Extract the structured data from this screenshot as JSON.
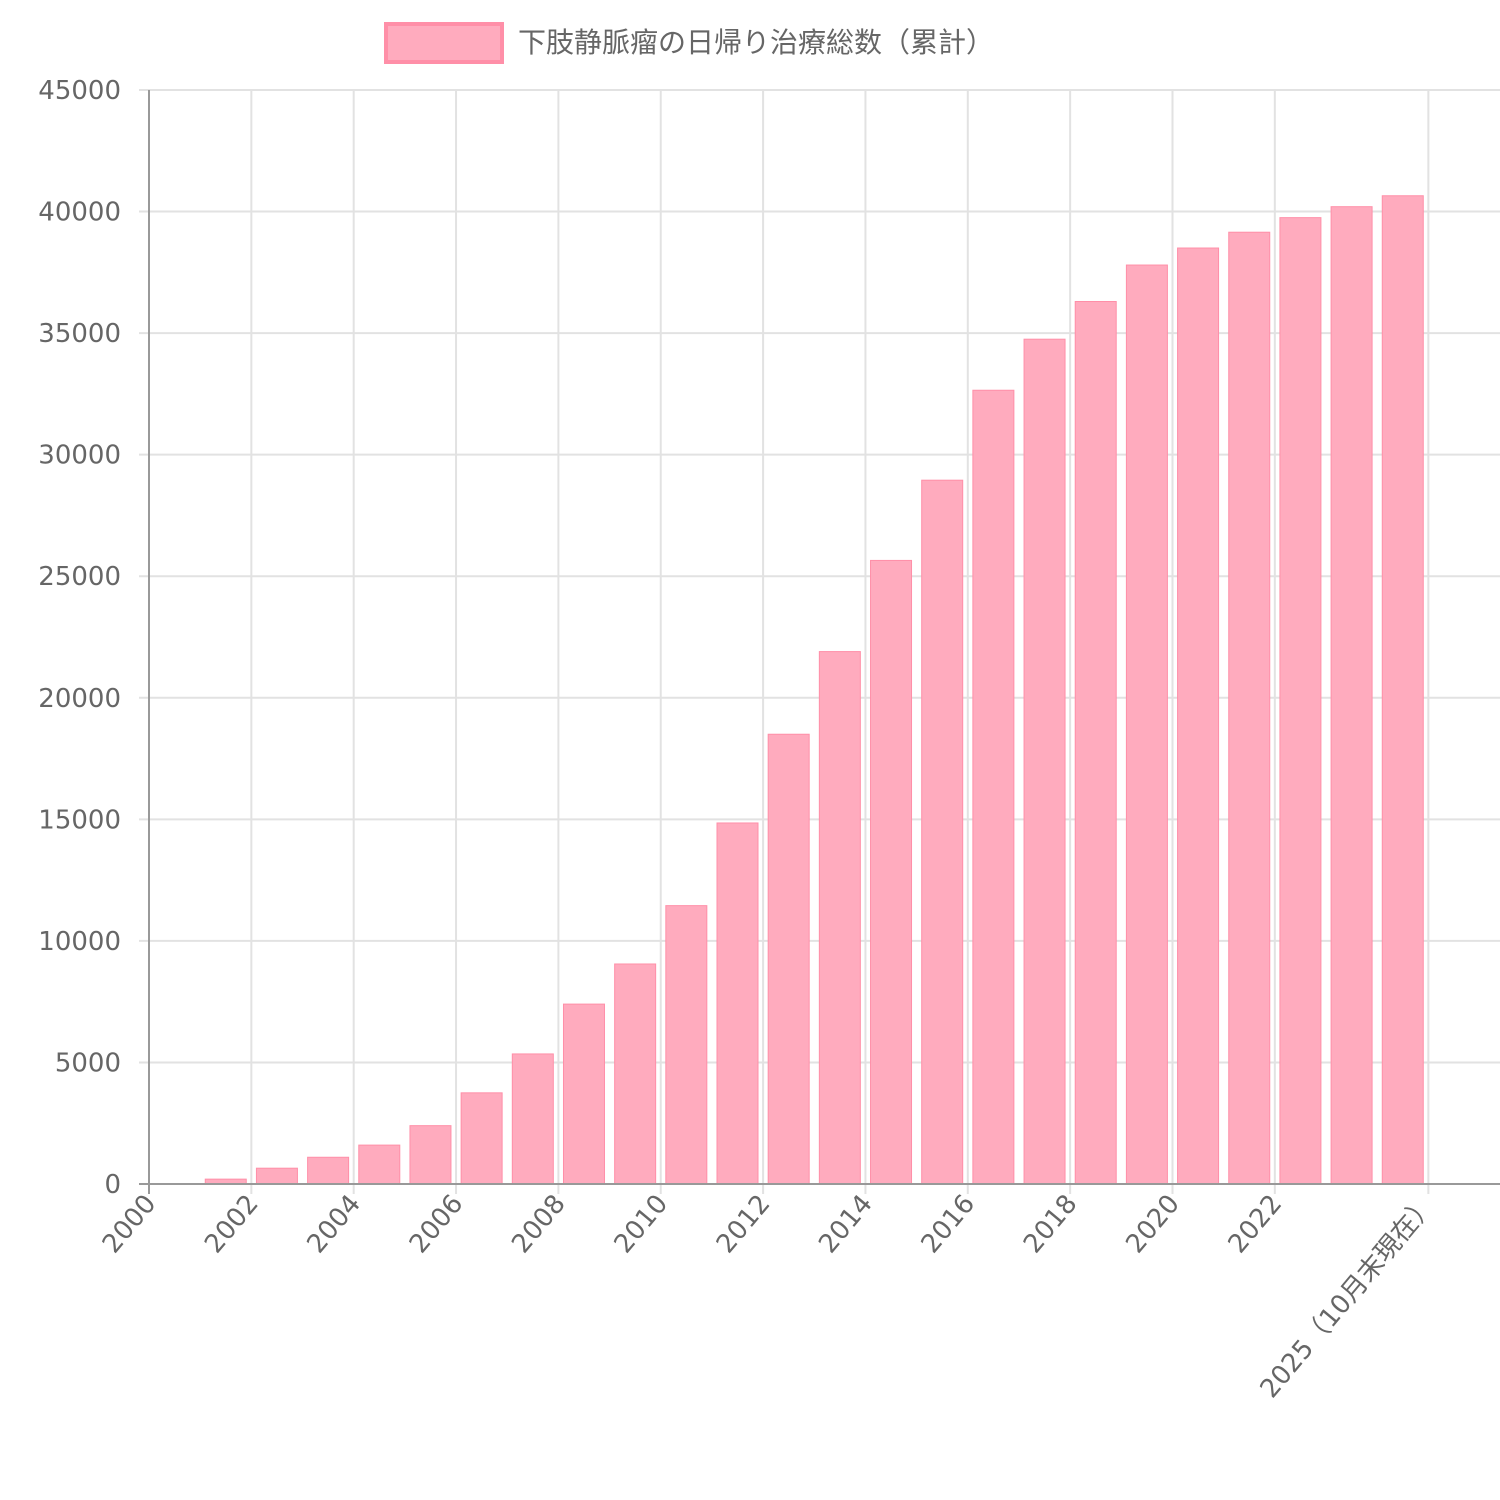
{
  "chart_data": {
    "type": "bar",
    "legend": {
      "label": "下肢静脈瘤の日帰り治療総数（累計）",
      "position": "top"
    },
    "colors": {
      "bar_fill": "#ffabbe",
      "bar_stroke": "#ff8fa8",
      "grid": "#e2e2e2",
      "axis": "#999999",
      "tick_text": "#666666"
    },
    "grid": true,
    "ylim": [
      0,
      45000
    ],
    "yticks": [
      0,
      5000,
      10000,
      15000,
      20000,
      25000,
      30000,
      35000,
      40000,
      45000
    ],
    "x_axis_labels": [
      {
        "label": "2000",
        "at": 2000
      },
      {
        "label": "2002",
        "at": 2002
      },
      {
        "label": "2004",
        "at": 2004
      },
      {
        "label": "2006",
        "at": 2006
      },
      {
        "label": "2008",
        "at": 2008
      },
      {
        "label": "2010",
        "at": 2010
      },
      {
        "label": "2012",
        "at": 2012
      },
      {
        "label": "2014",
        "at": 2014
      },
      {
        "label": "2016",
        "at": 2016
      },
      {
        "label": "2018",
        "at": 2018
      },
      {
        "label": "2020",
        "at": 2020
      },
      {
        "label": "2022",
        "at": 2022
      },
      {
        "label": "2025（10月末現在）",
        "at": 2025
      }
    ],
    "x_range": [
      2000,
      2026.4
    ],
    "bars": [
      {
        "year": 2001,
        "value": 200
      },
      {
        "year": 2002,
        "value": 650
      },
      {
        "year": 2003,
        "value": 1100
      },
      {
        "year": 2004,
        "value": 1600
      },
      {
        "year": 2005,
        "value": 2400
      },
      {
        "year": 2006,
        "value": 3750
      },
      {
        "year": 2007,
        "value": 5350
      },
      {
        "year": 2008,
        "value": 7400
      },
      {
        "year": 2009,
        "value": 9050
      },
      {
        "year": 2010,
        "value": 11450
      },
      {
        "year": 2011,
        "value": 14850
      },
      {
        "year": 2012,
        "value": 18500
      },
      {
        "year": 2013,
        "value": 21900
      },
      {
        "year": 2014,
        "value": 25650
      },
      {
        "year": 2015,
        "value": 28950
      },
      {
        "year": 2016,
        "value": 32650
      },
      {
        "year": 2017,
        "value": 34750
      },
      {
        "year": 2018,
        "value": 36300
      },
      {
        "year": 2019,
        "value": 37800
      },
      {
        "year": 2020,
        "value": 38500
      },
      {
        "year": 2021,
        "value": 39150
      },
      {
        "year": 2022,
        "value": 39750
      },
      {
        "year": 2023,
        "value": 40200
      },
      {
        "year": 2024,
        "value": 40650
      }
    ]
  }
}
